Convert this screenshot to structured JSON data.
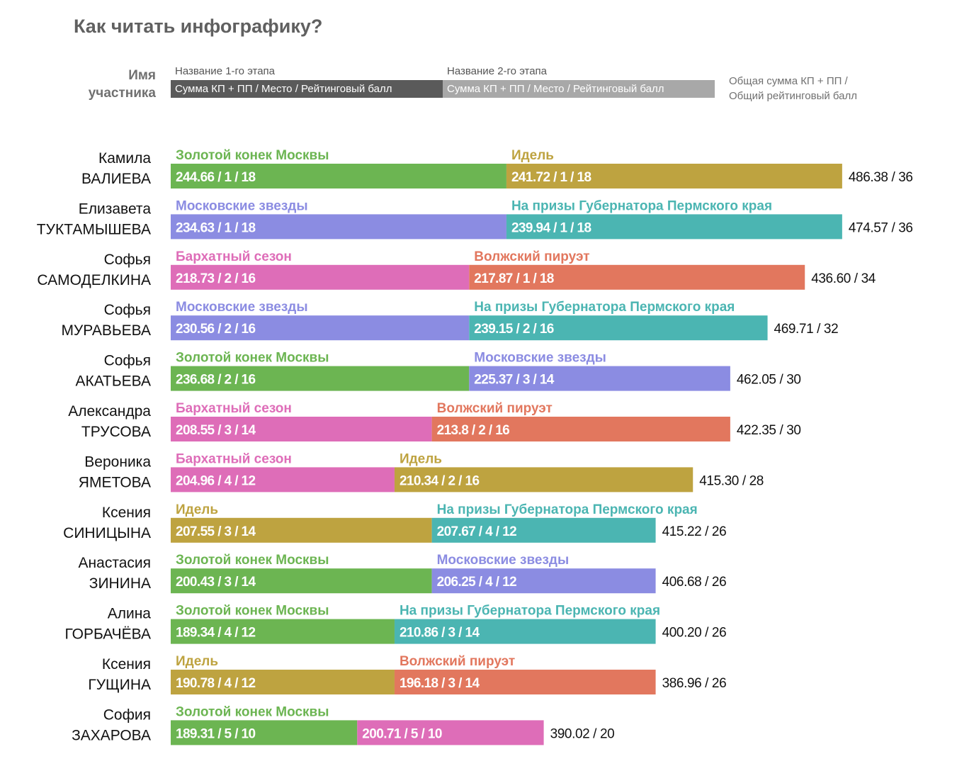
{
  "page": {
    "title": "Как читать инфографику?"
  },
  "legend": {
    "name_label_line1": "Имя",
    "name_label_line2": "участника",
    "stage1_label": "Название 1-го этапа",
    "stage1_box": "Сумма КП + ПП / Место / Рейтинговый балл",
    "stage2_label": "Название 2-го этапа",
    "stage2_box": "Сумма КП + ПП / Место / Рейтинговый балл",
    "total_line1": "Общая сумма КП + ПП /",
    "total_line2": "Общий рейтинговый балл",
    "stage1_color": "#5a5a5a",
    "stage2_color": "#a8a8a8"
  },
  "colors": {
    "Золотой конек Москвы": "#6cb552",
    "Идель": "#bea340",
    "Московские звезды": "#8b8ce2",
    "На призы Губернатора Пермского края": "#4bb5b2",
    "Бархатный сезон": "#de6db8",
    "Волжский пируэт": "#e2775e"
  },
  "chart_data": {
    "type": "bar",
    "stacked": true,
    "orientation": "horizontal",
    "title": "Как читать инфографику?",
    "rows": [
      {
        "first_name": "Камила",
        "last_name": "ВАЛИЕВА",
        "total": "486.38 / 36",
        "segments": [
          {
            "stage": "Золотой конек Москвы",
            "label": "244.66 / 1 / 18",
            "points": 18,
            "color": "#6cb552"
          },
          {
            "stage": "Идель",
            "label": "241.72 / 1 / 18",
            "points": 18,
            "color": "#bea340"
          }
        ]
      },
      {
        "first_name": "Елизавета",
        "last_name": "ТУКТАМЫШЕВА",
        "total": "474.57 / 36",
        "segments": [
          {
            "stage": "Московские звезды",
            "label": "234.63 / 1 / 18",
            "points": 18,
            "color": "#8b8ce2"
          },
          {
            "stage": "На призы Губернатора Пермского края",
            "label": "239.94 / 1 / 18",
            "points": 18,
            "color": "#4bb5b2"
          }
        ]
      },
      {
        "first_name": "Софья",
        "last_name": "САМОДЕЛКИНА",
        "total": "436.60 / 34",
        "segments": [
          {
            "stage": "Бархатный сезон",
            "label": "218.73 / 2 / 16",
            "points": 16,
            "color": "#de6db8"
          },
          {
            "stage": "Волжский пируэт",
            "label": "217.87 / 1 / 18",
            "points": 18,
            "color": "#e2775e"
          }
        ]
      },
      {
        "first_name": "Софья",
        "last_name": "МУРАВЬЕВА",
        "total": "469.71 / 32",
        "segments": [
          {
            "stage": "Московские звезды",
            "label": "230.56 / 2 / 16",
            "points": 16,
            "color": "#8b8ce2"
          },
          {
            "stage": "На призы Губернатора Пермского края",
            "label": "239.15 / 2 / 16",
            "points": 16,
            "color": "#4bb5b2"
          }
        ]
      },
      {
        "first_name": "Софья",
        "last_name": "АКАТЬЕВА",
        "total": "462.05 / 30",
        "segments": [
          {
            "stage": "Золотой конек Москвы",
            "label": "236.68 / 2 / 16",
            "points": 16,
            "color": "#6cb552"
          },
          {
            "stage": "Московские звезды",
            "label": "225.37 / 3 / 14",
            "points": 14,
            "color": "#8b8ce2"
          }
        ]
      },
      {
        "first_name": "Александра",
        "last_name": "ТРУСОВА",
        "total": "422.35 / 30",
        "segments": [
          {
            "stage": "Бархатный сезон",
            "label": "208.55 / 3 / 14",
            "points": 14,
            "color": "#de6db8"
          },
          {
            "stage": "Волжский пируэт",
            "label": "213.8 / 2 / 16",
            "points": 16,
            "color": "#e2775e"
          }
        ]
      },
      {
        "first_name": "Вероника",
        "last_name": "ЯМЕТОВА",
        "total": "415.30 / 28",
        "segments": [
          {
            "stage": "Бархатный сезон",
            "label": "204.96 / 4 / 12",
            "points": 12,
            "color": "#de6db8"
          },
          {
            "stage": "Идель",
            "label": "210.34 / 2 / 16",
            "points": 16,
            "color": "#bea340"
          }
        ]
      },
      {
        "first_name": "Ксения",
        "last_name": "СИНИЦЫНА",
        "total": "415.22 / 26",
        "segments": [
          {
            "stage": "Идель",
            "label": "207.55 / 3 / 14",
            "points": 14,
            "color": "#bea340"
          },
          {
            "stage": "На призы Губернатора Пермского края",
            "label": "207.67 / 4 / 12",
            "points": 12,
            "color": "#4bb5b2"
          }
        ]
      },
      {
        "first_name": "Анастасия",
        "last_name": "ЗИНИНА",
        "total": "406.68 / 26",
        "segments": [
          {
            "stage": "Золотой конек Москвы",
            "label": "200.43 / 3 / 14",
            "points": 14,
            "color": "#6cb552"
          },
          {
            "stage": "Московские звезды",
            "label": "206.25 / 4 / 12",
            "points": 12,
            "color": "#8b8ce2"
          }
        ]
      },
      {
        "first_name": "Алина",
        "last_name": "ГОРБАЧЁВА",
        "total": "400.20 / 26",
        "segments": [
          {
            "stage": "Золотой конек Москвы",
            "label": "189.34 / 4 / 12",
            "points": 12,
            "color": "#6cb552"
          },
          {
            "stage": "На призы Губернатора Пермского края",
            "label": "210.86 / 3 / 14",
            "points": 14,
            "color": "#4bb5b2"
          }
        ]
      },
      {
        "first_name": "Ксения",
        "last_name": "ГУЩИНА",
        "total": "386.96 / 26",
        "segments": [
          {
            "stage": "Идель",
            "label": "190.78 / 4 / 12",
            "points": 12,
            "color": "#bea340"
          },
          {
            "stage": "Волжский пируэт",
            "label": "196.18 / 3 / 14",
            "points": 14,
            "color": "#e2775e"
          }
        ]
      },
      {
        "first_name": "София",
        "last_name": "ЗАХАРОВА",
        "total": "390.02 / 20",
        "segments": [
          {
            "stage": "Золотой конек Москвы",
            "label": "189.31 / 5 / 10",
            "points": 10,
            "color": "#6cb552"
          },
          {
            "stage": "",
            "label": "200.71 / 5 / 10",
            "points": 10,
            "color": "#de6db8"
          }
        ]
      }
    ]
  }
}
